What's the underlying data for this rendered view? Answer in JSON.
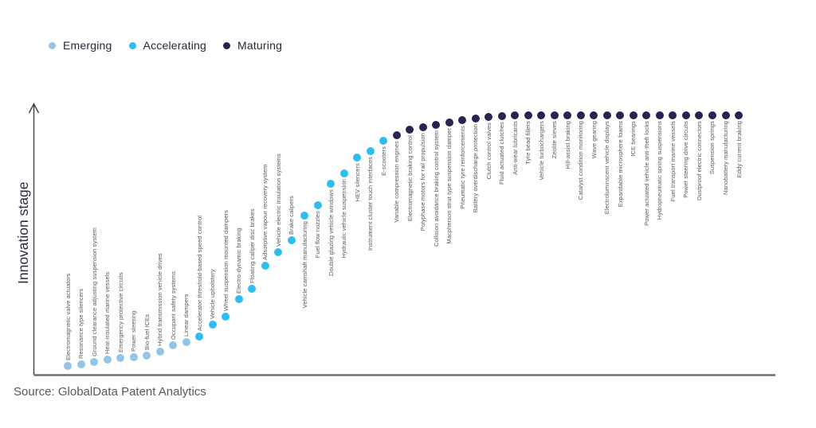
{
  "chart": {
    "ylabel": "Innovation stage",
    "source": "Source: GlobalData Patent Analytics"
  },
  "chart_data": {
    "type": "scatter",
    "title": "",
    "xlabel": "",
    "ylabel": "Innovation stage",
    "axis_note": "qualitative S-curve; no numeric ticks; level is 0-100 relative innovation maturity read from dot height",
    "legend_position": "top-left",
    "legend": [
      "Emerging",
      "Accelerating",
      "Maturing"
    ],
    "stage_colors": {
      "Emerging": "#93c5e8",
      "Accelerating": "#2ebdf1",
      "Maturing": "#2a2253"
    },
    "points": [
      {
        "label": "Electromagnetic valve actuators",
        "stage": "Emerging",
        "level": 0
      },
      {
        "label": "Resonance type silencers",
        "stage": "Emerging",
        "level": 0.7
      },
      {
        "label": "Ground clearance adjusting suspension system",
        "stage": "Emerging",
        "level": 1.6
      },
      {
        "label": "Heat-insulated marine vessels",
        "stage": "Emerging",
        "level": 2.5
      },
      {
        "label": "Emergency protective circuits",
        "stage": "Emerging",
        "level": 3.2
      },
      {
        "label": "Power steering",
        "stage": "Emerging",
        "level": 3.6
      },
      {
        "label": "Bio-fuel ICEs",
        "stage": "Emerging",
        "level": 4.2
      },
      {
        "label": "Hybrid transmission vehicle drives",
        "stage": "Emerging",
        "level": 5.7
      },
      {
        "label": "Occupant safety systems",
        "stage": "Emerging",
        "level": 8.3
      },
      {
        "label": "Linear dampers",
        "stage": "Emerging",
        "level": 9.5
      },
      {
        "label": "Accelerator threshold-based speed control",
        "stage": "Accelerating",
        "level": 11.8
      },
      {
        "label": "Vehicle upholstery",
        "stage": "Accelerating",
        "level": 16.5
      },
      {
        "label": "Wheel suspension mounted dampers",
        "stage": "Accelerating",
        "level": 19.7
      },
      {
        "label": "Electro-dynamic braking",
        "stage": "Accelerating",
        "level": 26.7
      },
      {
        "label": "Floating caliper disc brakes",
        "stage": "Accelerating",
        "level": 30.8
      },
      {
        "label": "Adsorptive vapour recovery system",
        "stage": "Accelerating",
        "level": 40
      },
      {
        "label": "Vehicle electric insulation systems",
        "stage": "Accelerating",
        "level": 45.4
      },
      {
        "label": "Brake calipers",
        "stage": "Accelerating",
        "level": 50.2
      },
      {
        "label": "Vehicle camshaft manufacturing",
        "stage": "Accelerating",
        "level": 60
      },
      {
        "label": "Fuel flow nozzles",
        "stage": "Accelerating",
        "level": 64.1
      },
      {
        "label": "Double glazing vehicle windows",
        "stage": "Accelerating",
        "level": 72.7
      },
      {
        "label": "Hydraulic vehicle suspension",
        "stage": "Accelerating",
        "level": 76.8
      },
      {
        "label": "HEV silencers",
        "stage": "Accelerating",
        "level": 83.2
      },
      {
        "label": "Instrument cluster touch interfaces",
        "stage": "Accelerating",
        "level": 85.7
      },
      {
        "label": "E-scooters",
        "stage": "Accelerating",
        "level": 89.8
      },
      {
        "label": "Variable compression engines",
        "stage": "Maturing",
        "level": 92.1
      },
      {
        "label": "Electromagnetic braking control",
        "stage": "Maturing",
        "level": 94.3
      },
      {
        "label": "Polyphase motors for rail propulsion",
        "stage": "Maturing",
        "level": 95.2
      },
      {
        "label": "Collision avoidance braking control system",
        "stage": "Maturing",
        "level": 96.2
      },
      {
        "label": "Macpherson strut type suspension damper",
        "stage": "Maturing",
        "level": 97.1
      },
      {
        "label": "Pneumatic tyre reinforcements",
        "stage": "Maturing",
        "level": 98.1
      },
      {
        "label": "Battery overdischarge protection",
        "stage": "Maturing",
        "level": 98.7
      },
      {
        "label": "Clutch control valves",
        "stage": "Maturing",
        "level": 99.4
      },
      {
        "label": "Fluid actuated clutches",
        "stage": "Maturing",
        "level": 99.7
      },
      {
        "label": "Anti-wear lubricants",
        "stage": "Maturing",
        "level": 100
      },
      {
        "label": "Tyre bead fillers",
        "stage": "Maturing",
        "level": 100
      },
      {
        "label": "Vehicle turbochargers",
        "stage": "Maturing",
        "level": 100
      },
      {
        "label": "Zeolite sieves",
        "stage": "Maturing",
        "level": 100
      },
      {
        "label": "Hill-assist braking",
        "stage": "Maturing",
        "level": 100
      },
      {
        "label": "Catalyst condition monitoring",
        "stage": "Maturing",
        "level": 100
      },
      {
        "label": "Wave gearing",
        "stage": "Maturing",
        "level": 100
      },
      {
        "label": "Electroluminscent vehicle displays",
        "stage": "Maturing",
        "level": 100
      },
      {
        "label": "Expandable microsphere foams",
        "stage": "Maturing",
        "level": 100
      },
      {
        "label": "ICE bearings",
        "stage": "Maturing",
        "level": 100
      },
      {
        "label": "Power actuated vehicle anti-theft locks",
        "stage": "Maturing",
        "level": 100
      },
      {
        "label": "Hydropneumatic spring suspensions",
        "stage": "Maturing",
        "level": 100
      },
      {
        "label": "Fuel transport marine vessels",
        "stage": "Maturing",
        "level": 100
      },
      {
        "label": "Power steering drive circuits",
        "stage": "Maturing",
        "level": 100
      },
      {
        "label": "Dustproof electric connectors",
        "stage": "Maturing",
        "level": 100
      },
      {
        "label": "Suspension springs",
        "stage": "Maturing",
        "level": 100
      },
      {
        "label": "Nanobattery manufacturing",
        "stage": "Maturing",
        "level": 100
      },
      {
        "label": "Eddy current braking",
        "stage": "Maturing",
        "level": 100
      }
    ]
  }
}
